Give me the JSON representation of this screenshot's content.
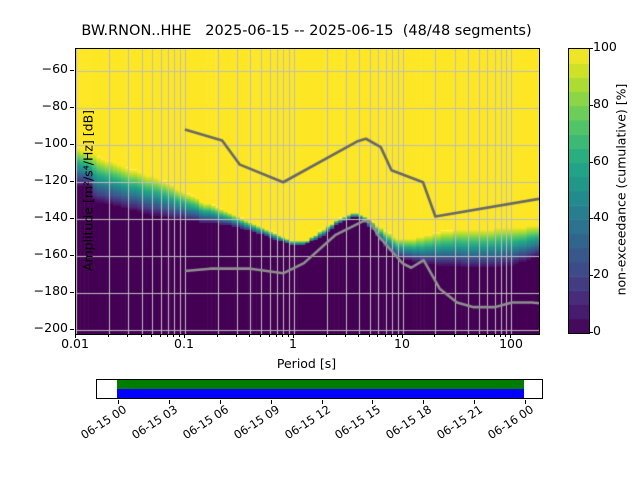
{
  "title": "BW.RNON..HHE   2025-06-15 -- 2025-06-15  (48/48 segments)",
  "axes": {
    "x": {
      "label": "Period [s]",
      "tick_labels": [
        "0.01",
        "0.1",
        "1",
        "10",
        "100"
      ]
    },
    "y": {
      "label": "Amplitude [m²/s⁴/Hz] [dB]",
      "tick_labels": [
        "−60",
        "−80",
        "−100",
        "−120",
        "−140",
        "−160",
        "−180",
        "−200"
      ]
    },
    "colorbar": {
      "label": "non-exceedance (cumulative) [%]",
      "tick_labels": [
        "100",
        "80",
        "60",
        "40",
        "20",
        "0"
      ]
    }
  },
  "chart_data": {
    "type": "heatmap",
    "title": "BW.RNON..HHE   2025-06-15 -- 2025-06-15  (48/48 segments)",
    "xlabel": "Period [s]",
    "ylabel": "Amplitude [m²/s⁴/Hz] [dB]",
    "x_scale": "log",
    "xlim": [
      0.01,
      179
    ],
    "ylim": [
      -202,
      -48
    ],
    "x_major_ticks": [
      0.01,
      0.1,
      1,
      10,
      100
    ],
    "y_ticks": [
      -60,
      -80,
      -100,
      -120,
      -140,
      -160,
      -180,
      -200
    ],
    "grid": true,
    "grid_color": "#bdbdbd",
    "colormap": "viridis",
    "colorbar_label": "non-exceedance (cumulative) [%]",
    "colorbar_ticks": [
      0,
      20,
      40,
      60,
      80,
      100
    ],
    "colorbar_range": [
      0,
      100
    ],
    "viridis_stops": [
      [
        0.0,
        "#440154"
      ],
      [
        0.1,
        "#482475"
      ],
      [
        0.2,
        "#414487"
      ],
      [
        0.3,
        "#355f8d"
      ],
      [
        0.4,
        "#2a788e"
      ],
      [
        0.5,
        "#21918c"
      ],
      [
        0.6,
        "#22a884"
      ],
      [
        0.7,
        "#44bf70"
      ],
      [
        0.8,
        "#7ad151"
      ],
      [
        0.9,
        "#bddf26"
      ],
      [
        1.0,
        "#fde725"
      ]
    ],
    "distribution": {
      "comment": "Cumulative PPSD: 100% (yellow) above db_top, viridis gradient between db_top and db_bottom, 0% (dark purple) below db_bottom. dB values read from plot per period (s).",
      "periods": [
        0.01,
        0.0125,
        0.0135,
        0.0145,
        0.016,
        0.02,
        0.03,
        0.045,
        0.065,
        0.1,
        0.14,
        0.2,
        0.3,
        0.5,
        0.8,
        1.0,
        1.3,
        1.8,
        2.5,
        3.3,
        3.8,
        4.5,
        5.5,
        7.0,
        9.0,
        12.0,
        17.0,
        25.0,
        35.0,
        50.0,
        70.0,
        100.0,
        140.0,
        179.0
      ],
      "db_top": [
        -101,
        -103,
        -103.5,
        -104,
        -105.5,
        -108,
        -112,
        -115.5,
        -119,
        -125,
        -129.5,
        -133.5,
        -138,
        -143.5,
        -149.5,
        -151.5,
        -151,
        -145.5,
        -140,
        -136.5,
        -136,
        -138,
        -141.5,
        -146,
        -150.5,
        -150.5,
        -148,
        -146,
        -145,
        -145,
        -144.5,
        -144,
        -143.5,
        -143
      ],
      "db_bottom": [
        -121.5,
        -122,
        -122,
        -130,
        -131,
        -132,
        -134.5,
        -137,
        -139,
        -140.5,
        -141.5,
        -142.5,
        -144,
        -148,
        -152.5,
        -154.5,
        -153.5,
        -149.5,
        -143,
        -139,
        -138.5,
        -141,
        -147,
        -155,
        -161,
        -162.5,
        -164,
        -165,
        -165.5,
        -166,
        -166,
        -165,
        -162,
        -159
      ],
      "bins_per_decade": 26.6
    },
    "noise_models": {
      "comment": "Peterson (1993) new high/low noise models, acceleration PSD in dB.",
      "nhnm": {
        "color": "#686868",
        "periods": [
          0.1,
          0.22,
          0.32,
          0.8,
          3.8,
          4.6,
          6.3,
          7.9,
          15.4,
          20.0,
          179.0
        ],
        "db": [
          -91.5,
          -97.4,
          -110.5,
          -120.0,
          -98.0,
          -96.5,
          -101.0,
          -113.5,
          -120.0,
          -138.5,
          -129.0
        ]
      },
      "nlnm": {
        "color": "#8f8f8f",
        "periods": [
          0.1,
          0.17,
          0.4,
          0.8,
          1.24,
          2.4,
          4.3,
          5.0,
          6.0,
          10.0,
          12.0,
          15.6,
          21.9,
          31.6,
          45.0,
          70.0,
          101.0,
          154.0,
          179.0
        ],
        "db": [
          -168.0,
          -166.7,
          -166.7,
          -169.2,
          -163.7,
          -148.6,
          -141.1,
          -141.1,
          -149.0,
          -163.8,
          -166.2,
          -162.1,
          -177.5,
          -185.0,
          -187.5,
          -187.5,
          -185.0,
          -185.0,
          -185.4
        ]
      },
      "line_width": 2.6
    },
    "colors": {
      "max_percent": "#fde725",
      "zero_percent": "#440154"
    }
  },
  "timeline": {
    "tick_labels": [
      "06-15 00",
      "06-15 03",
      "06-15 06",
      "06-15 09",
      "06-15 12",
      "06-15 15",
      "06-15 18",
      "06-15 21",
      "06-16 00"
    ],
    "coverage_green": "#007c00",
    "coverage_blue": "#0000ff"
  }
}
